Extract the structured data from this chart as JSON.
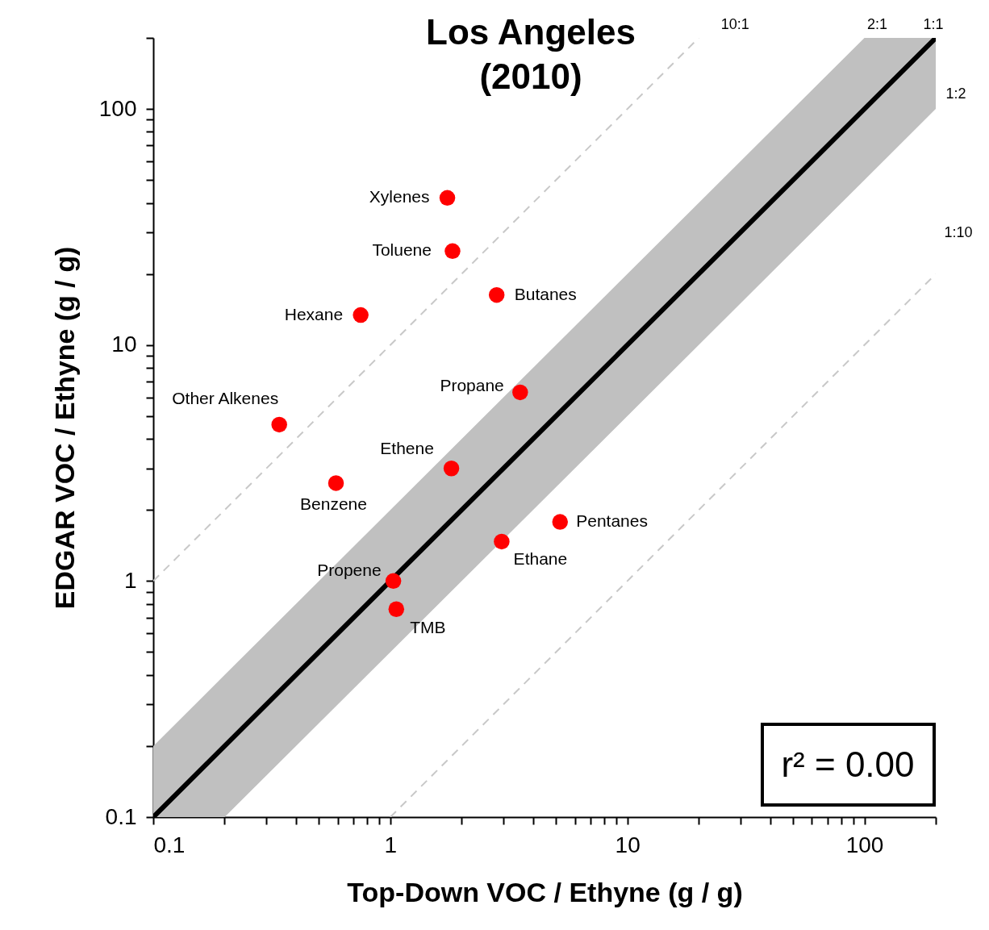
{
  "chart_data": {
    "type": "scatter",
    "title": "Los Angeles\n(2010)",
    "xlabel": "Top-Down VOC / Ethyne (g / g)",
    "ylabel": "EDGAR VOC / Ethyne (g / g)",
    "log": "xy",
    "grid": false,
    "marker": "circle",
    "xlim": [
      0.1,
      200
    ],
    "ylim": [
      0.1,
      200
    ],
    "xticks": [
      0.1,
      {
        "value": 0.2,
        "label": null
      },
      {
        "value": 0.3,
        "label": null
      },
      {
        "value": 0.4,
        "label": null
      },
      {
        "value": 0.5,
        "label": null
      },
      {
        "value": 0.6,
        "label": null
      },
      {
        "value": 0.7,
        "label": null
      },
      {
        "value": 0.8,
        "label": null
      },
      {
        "value": 0.9,
        "label": null
      },
      1,
      {
        "value": 2,
        "label": null
      },
      {
        "value": 3,
        "label": null
      },
      {
        "value": 4,
        "label": null
      },
      {
        "value": 5,
        "label": null
      },
      {
        "value": 6,
        "label": null
      },
      {
        "value": 7,
        "label": null
      },
      {
        "value": 8,
        "label": null
      },
      {
        "value": 9,
        "label": null
      },
      10,
      {
        "value": 20,
        "label": null
      },
      {
        "value": 30,
        "label": null
      },
      {
        "value": 40,
        "label": null
      },
      {
        "value": 50,
        "label": null
      },
      {
        "value": 60,
        "label": null
      },
      {
        "value": 70,
        "label": null
      },
      {
        "value": 80,
        "label": null
      },
      {
        "value": 90,
        "label": null
      },
      100,
      {
        "value": 200,
        "label": null
      }
    ],
    "yticks": [
      0.1,
      {
        "value": 0.2,
        "label": null
      },
      {
        "value": 0.3,
        "label": null
      },
      {
        "value": 0.4,
        "label": null
      },
      {
        "value": 0.5,
        "label": null
      },
      {
        "value": 0.6,
        "label": null
      },
      {
        "value": 0.7,
        "label": null
      },
      {
        "value": 0.8,
        "label": null
      },
      {
        "value": 0.9,
        "label": null
      },
      1,
      {
        "value": 2,
        "label": null
      },
      {
        "value": 3,
        "label": null
      },
      {
        "value": 4,
        "label": null
      },
      {
        "value": 5,
        "label": null
      },
      {
        "value": 6,
        "label": null
      },
      {
        "value": 7,
        "label": null
      },
      {
        "value": 8,
        "label": null
      },
      {
        "value": 9,
        "label": null
      },
      10,
      {
        "value": 20,
        "label": null
      },
      {
        "value": 30,
        "label": null
      },
      {
        "value": 40,
        "label": null
      },
      {
        "value": 50,
        "label": null
      },
      {
        "value": 60,
        "label": null
      },
      {
        "value": 70,
        "label": null
      },
      {
        "value": 80,
        "label": null
      },
      {
        "value": 90,
        "label": null
      },
      100,
      {
        "value": 200,
        "label": null
      }
    ],
    "series": [
      {
        "type": "line",
        "color": "#000000",
        "marker": "none",
        "x": [
          0.1,
          0.2,
          100,
          200
        ],
        "values": [
          0.1,
          0.2,
          100,
          200
        ],
        "lower": [
          0.1,
          0.1,
          50,
          100
        ],
        "upper": [
          0.2,
          0.4,
          200,
          200
        ]
      },
      {
        "type": "line",
        "color": "#c8c8c8",
        "marker": "none",
        "line_style": "dashed",
        "x": [
          0.1,
          20
        ],
        "values": [
          1,
          200
        ]
      },
      {
        "type": "line",
        "color": "#c8c8c8",
        "marker": "none",
        "line_style": "dashed",
        "x": [
          1,
          200
        ],
        "values": [
          0.1,
          20
        ]
      },
      {
        "type": "scatter",
        "color": "#ff0000",
        "x": [
          1.74,
          1.83,
          2.81,
          0.75,
          3.53,
          0.34,
          1.81,
          0.59,
          5.2,
          2.95,
          1.03,
          1.06
        ],
        "values": [
          42,
          25,
          16.3,
          13.4,
          6.3,
          4.6,
          3.0,
          2.6,
          1.78,
          1.47,
          1.0,
          0.76
        ]
      }
    ],
    "annotations": [
      {
        "text": "Xylenes",
        "x": 1.74,
        "y": 42
      },
      {
        "text": "Toluene",
        "x": 1.83,
        "y": 25
      },
      {
        "text": "Butanes",
        "x": 2.81,
        "y": 16.3
      },
      {
        "text": "Hexane",
        "x": 0.75,
        "y": 13.4
      },
      {
        "text": "Propane",
        "x": 3.53,
        "y": 6.3
      },
      {
        "text": "Other Alkenes",
        "x": 0.34,
        "y": 4.6
      },
      {
        "text": "Ethene",
        "x": 1.81,
        "y": 3.0
      },
      {
        "text": "Benzene",
        "x": 0.59,
        "y": 2.6
      },
      {
        "text": "Pentanes",
        "x": 5.2,
        "y": 1.78
      },
      {
        "text": "Ethane",
        "x": 2.95,
        "y": 1.47
      },
      {
        "text": "Propene",
        "x": 1.03,
        "y": 1.0
      },
      {
        "text": "TMB",
        "x": 1.06,
        "y": 0.76
      },
      {
        "text": "10:1",
        "x": 20,
        "y": 200
      },
      {
        "text": "2:1",
        "x": 100,
        "y": 200
      },
      {
        "text": "1:1",
        "x": 200,
        "y": 200
      },
      {
        "text": "1:2",
        "x": 200,
        "y": 100
      },
      {
        "text": "1:10",
        "x": 200,
        "y": 20
      },
      "r² = 0.00"
    ]
  }
}
